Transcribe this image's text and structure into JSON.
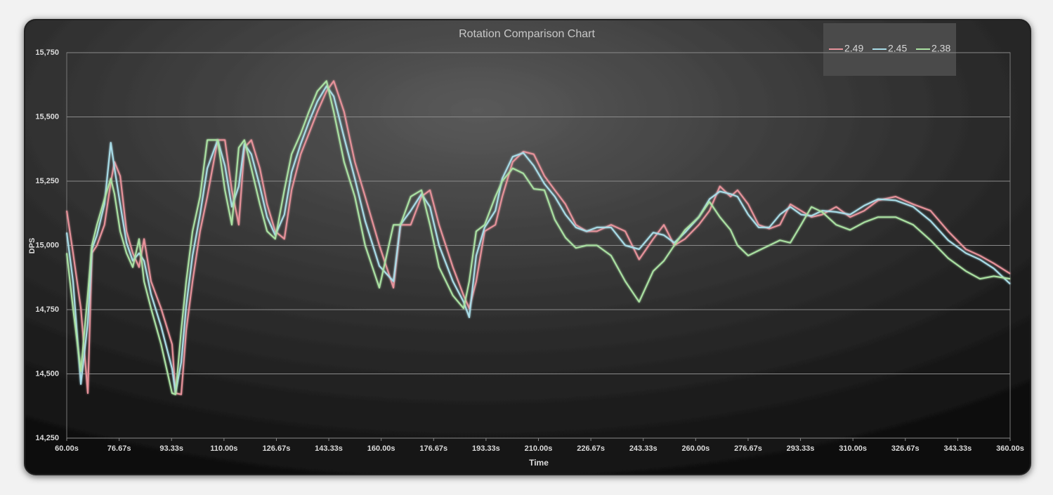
{
  "chart_data": {
    "type": "line",
    "title": "Rotation Comparison Chart",
    "x_label": "Time",
    "y_label": "DPS",
    "x": [
      60,
      62,
      64.5,
      66.7,
      68,
      69.6,
      72,
      74,
      75.2,
      77,
      79,
      81,
      83,
      84.6,
      86.8,
      90,
      93.5,
      94.6,
      96.4,
      98,
      100,
      102.4,
      104.7,
      108,
      110.3,
      112.5,
      114.7,
      116.5,
      118.7,
      121.4,
      123.7,
      126.3,
      129.2,
      131.5,
      134.4,
      137,
      139.7,
      142.6,
      144.9,
      148.2,
      151.6,
      154.9,
      159.4,
      163.9,
      166.1,
      169.4,
      172.8,
      175.5,
      178.4,
      182.8,
      186.2,
      188,
      190.2,
      192.9,
      196.3,
      198.5,
      201.8,
      205.2,
      208.5,
      211.9,
      215.2,
      218.6,
      221.9,
      225.3,
      228.6,
      233.1,
      237.6,
      242,
      246.5,
      249.9,
      253.2,
      256.6,
      261,
      264.4,
      267.7,
      271.1,
      273.3,
      276.7,
      280,
      283.4,
      286.8,
      290.1,
      293.5,
      296.8,
      300.2,
      304.7,
      309.1,
      313.6,
      318,
      323.6,
      329.2,
      334.7,
      340.3,
      345.9,
      350.4,
      354.8,
      360
    ],
    "series": [
      {
        "name": "2.49",
        "color": "#e8939b",
        "values": [
          15135,
          14970,
          14755,
          14425,
          14970,
          15000,
          15080,
          15245,
          15325,
          15270,
          15055,
          14970,
          14915,
          15025,
          14860,
          14755,
          14615,
          14425,
          14420,
          14670,
          14860,
          15055,
          15190,
          15410,
          15410,
          15215,
          15080,
          15380,
          15410,
          15300,
          15160,
          15055,
          15025,
          15215,
          15355,
          15435,
          15520,
          15600,
          15640,
          15520,
          15325,
          15190,
          15000,
          14835,
          15080,
          15080,
          15190,
          15215,
          15080,
          14915,
          14805,
          14755,
          14860,
          15055,
          15080,
          15190,
          15325,
          15365,
          15355,
          15270,
          15215,
          15160,
          15080,
          15055,
          15055,
          15080,
          15055,
          14945,
          15025,
          15080,
          15000,
          15025,
          15080,
          15135,
          15230,
          15190,
          15215,
          15160,
          15080,
          15065,
          15080,
          15160,
          15135,
          15110,
          15120,
          15150,
          15110,
          15135,
          15175,
          15190,
          15160,
          15135,
          15055,
          14985,
          14960,
          14930,
          14890
        ]
      },
      {
        "name": "2.45",
        "color": "#a9dde8",
        "values": [
          15050,
          14860,
          14460,
          14700,
          14985,
          15040,
          15160,
          15400,
          15300,
          15160,
          15010,
          14940,
          14970,
          14940,
          14810,
          14685,
          14520,
          14425,
          14545,
          14765,
          14960,
          15120,
          15300,
          15410,
          15310,
          15150,
          15230,
          15395,
          15355,
          15230,
          15110,
          15040,
          15120,
          15285,
          15395,
          15480,
          15560,
          15620,
          15580,
          15420,
          15260,
          15095,
          14920,
          14860,
          15080,
          15135,
          15200,
          15150,
          15000,
          14860,
          14780,
          14720,
          14960,
          15070,
          15135,
          15260,
          15345,
          15360,
          15310,
          15240,
          15190,
          15120,
          15070,
          15055,
          15070,
          15070,
          15000,
          14985,
          15050,
          15040,
          15010,
          15050,
          15110,
          15180,
          15210,
          15200,
          15190,
          15120,
          15070,
          15070,
          15120,
          15150,
          15120,
          15115,
          15135,
          15130,
          15120,
          15155,
          15180,
          15175,
          15150,
          15095,
          15020,
          14970,
          14945,
          14910,
          14850
        ]
      },
      {
        "name": "2.38",
        "color": "#abe2a3",
        "values": [
          14970,
          14755,
          14510,
          14810,
          15000,
          15080,
          15180,
          15260,
          15200,
          15055,
          14970,
          14915,
          15025,
          14860,
          14755,
          14615,
          14425,
          14420,
          14670,
          14860,
          15055,
          15190,
          15410,
          15410,
          15215,
          15080,
          15380,
          15410,
          15300,
          15160,
          15055,
          15025,
          15215,
          15355,
          15435,
          15520,
          15600,
          15640,
          15520,
          15325,
          15190,
          15000,
          14835,
          15080,
          15080,
          15190,
          15215,
          15080,
          14915,
          14805,
          14755,
          14860,
          15055,
          15080,
          15190,
          15250,
          15300,
          15280,
          15220,
          15215,
          15100,
          15030,
          14990,
          15000,
          15000,
          14960,
          14860,
          14780,
          14900,
          14940,
          15000,
          15060,
          15110,
          15170,
          15110,
          15060,
          15000,
          14960,
          14980,
          15000,
          15020,
          15010,
          15080,
          15150,
          15130,
          15080,
          15060,
          15090,
          15110,
          15110,
          15080,
          15020,
          14950,
          14900,
          14870,
          14880,
          14870
        ]
      }
    ],
    "xlim": [
      60,
      360
    ],
    "xticks": [
      {
        "value": 60,
        "label": "60.00s"
      },
      {
        "value": 76.67,
        "label": "76.67s"
      },
      {
        "value": 93.33,
        "label": "93.33s"
      },
      {
        "value": 110,
        "label": "110.00s"
      },
      {
        "value": 126.67,
        "label": "126.67s"
      },
      {
        "value": 143.33,
        "label": "143.33s"
      },
      {
        "value": 160,
        "label": "160.00s"
      },
      {
        "value": 176.67,
        "label": "176.67s"
      },
      {
        "value": 193.33,
        "label": "193.33s"
      },
      {
        "value": 210,
        "label": "210.00s"
      },
      {
        "value": 226.67,
        "label": "226.67s"
      },
      {
        "value": 243.33,
        "label": "243.33s"
      },
      {
        "value": 260,
        "label": "260.00s"
      },
      {
        "value": 276.67,
        "label": "276.67s"
      },
      {
        "value": 293.33,
        "label": "293.33s"
      },
      {
        "value": 310,
        "label": "310.00s"
      },
      {
        "value": 326.67,
        "label": "326.67s"
      },
      {
        "value": 343.33,
        "label": "343.33s"
      },
      {
        "value": 360,
        "label": "360.00s"
      }
    ],
    "ylim": [
      14250,
      15750
    ],
    "yticks": [
      {
        "value": 14250,
        "label": "14,250"
      },
      {
        "value": 14500,
        "label": "14,500"
      },
      {
        "value": 14750,
        "label": "14,750"
      },
      {
        "value": 15000,
        "label": "15,000"
      },
      {
        "value": 15250,
        "label": "15,250"
      },
      {
        "value": 15500,
        "label": "15,500"
      },
      {
        "value": 15750,
        "label": "15,750"
      }
    ],
    "grid": true,
    "legend": "top-right"
  }
}
